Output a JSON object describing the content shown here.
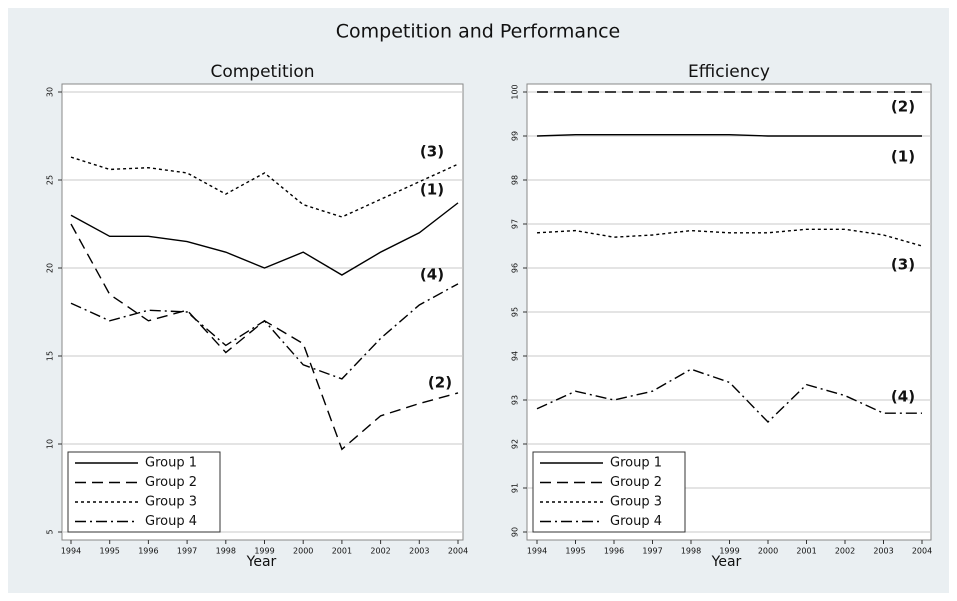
{
  "title": "Competition and Performance",
  "chart_data": [
    {
      "type": "line",
      "title": "Competition",
      "x_label": "Year",
      "x": [
        1994,
        1995,
        1996,
        1997,
        1998,
        1999,
        2000,
        2001,
        2002,
        2003,
        2004
      ],
      "xlim": [
        1994,
        2004
      ],
      "xticks": [
        1994,
        1995,
        1996,
        1997,
        1998,
        1999,
        2000,
        2001,
        2002,
        2003,
        2004
      ],
      "ylim": [
        5,
        30
      ],
      "yticks": [
        5,
        10,
        15,
        20,
        25,
        30
      ],
      "grid": true,
      "legend": "lower left",
      "series": [
        {
          "name": "Group 1",
          "annotation": "(1)",
          "color": "#000000",
          "dash": "solid",
          "values": [
            23.0,
            21.8,
            21.8,
            21.5,
            20.9,
            20.0,
            20.9,
            19.6,
            20.9,
            22.0,
            23.7
          ]
        },
        {
          "name": "Group 2",
          "annotation": "(2)",
          "color": "#000000",
          "dash": "dashed",
          "values": [
            22.5,
            18.5,
            17.0,
            17.6,
            15.2,
            17.0,
            15.7,
            9.7,
            11.6,
            12.3,
            12.9
          ]
        },
        {
          "name": "Group 3",
          "annotation": "(3)",
          "color": "#000000",
          "dash": "dotted",
          "values": [
            26.3,
            25.6,
            25.7,
            25.4,
            24.2,
            25.4,
            23.6,
            22.9,
            23.9,
            24.9,
            25.9
          ]
        },
        {
          "name": "Group 4",
          "annotation": "(4)",
          "color": "#000000",
          "dash": "dashdot",
          "values": [
            18.0,
            17.0,
            17.6,
            17.5,
            15.6,
            17.0,
            14.5,
            13.7,
            16.0,
            17.9,
            19.1
          ]
        }
      ]
    },
    {
      "type": "line",
      "title": "Efficiency",
      "x_label": "Year",
      "x": [
        1994,
        1995,
        1996,
        1997,
        1998,
        1999,
        2000,
        2001,
        2002,
        2003,
        2004
      ],
      "xlim": [
        1994,
        2004
      ],
      "xticks": [
        1994,
        1995,
        1996,
        1997,
        1998,
        1999,
        2000,
        2001,
        2002,
        2003,
        2004
      ],
      "ylim": [
        90,
        100
      ],
      "yticks": [
        90,
        91,
        92,
        93,
        94,
        95,
        96,
        97,
        98,
        99,
        100
      ],
      "grid": true,
      "legend": "lower left",
      "series": [
        {
          "name": "Group 1",
          "annotation": "(1)",
          "color": "#000000",
          "dash": "solid",
          "values": [
            99.0,
            99.03,
            99.03,
            99.03,
            99.03,
            99.03,
            99.0,
            99.0,
            99.0,
            99.0,
            99.0
          ]
        },
        {
          "name": "Group 2",
          "annotation": "(2)",
          "color": "#000000",
          "dash": "dashed",
          "values": [
            100,
            100,
            100,
            100,
            100,
            100,
            100,
            100,
            100,
            100,
            100
          ]
        },
        {
          "name": "Group 3",
          "annotation": "(3)",
          "color": "#000000",
          "dash": "dotted",
          "values": [
            96.8,
            96.85,
            96.7,
            96.75,
            96.85,
            96.8,
            96.8,
            96.88,
            96.88,
            96.75,
            96.5
          ]
        },
        {
          "name": "Group 4",
          "annotation": "(4)",
          "color": "#000000",
          "dash": "dashdot",
          "values": [
            92.8,
            93.2,
            93.0,
            93.2,
            93.7,
            93.4,
            92.5,
            93.35,
            93.1,
            92.7,
            92.7
          ]
        }
      ]
    }
  ]
}
